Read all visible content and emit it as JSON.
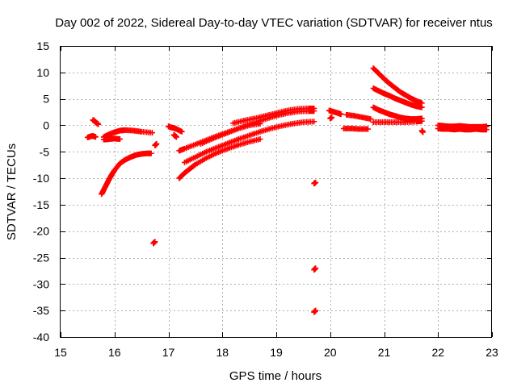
{
  "chart_data": {
    "type": "scatter",
    "title": "Day 002 of 2022, Sidereal Day-to-day VTEC variation (SDTVAR) for receiver ntus",
    "xlabel": "GPS time / hours",
    "ylabel": "SDTVAR / TECUs",
    "xlim": [
      15,
      23
    ],
    "ylim": [
      -40,
      15
    ],
    "xticks": [
      15,
      16,
      17,
      18,
      19,
      20,
      21,
      22,
      23
    ],
    "yticks": [
      15,
      10,
      5,
      0,
      -5,
      -10,
      -15,
      -20,
      -25,
      -30,
      -35,
      -40
    ],
    "grid": true,
    "marker": "plus",
    "color": "#ff0000",
    "series": [
      {
        "name": "seg1",
        "x": [
          15.6,
          15.62,
          15.65,
          15.7
        ],
        "y": [
          1.0,
          0.9,
          0.6,
          0.2
        ]
      },
      {
        "name": "seg2",
        "x": [
          15.5,
          15.55,
          15.6,
          15.65
        ],
        "y": [
          -2.3,
          -2.1,
          -2.0,
          -2.2
        ]
      },
      {
        "name": "seg3",
        "x": [
          15.8,
          15.9,
          16.0,
          16.1
        ],
        "y": [
          -2.7,
          -2.6,
          -2.5,
          -2.6
        ]
      },
      {
        "name": "seg4",
        "x": [
          15.8,
          15.9,
          16.0,
          16.1,
          16.2,
          16.35,
          16.5,
          16.7
        ],
        "y": [
          -2.2,
          -1.7,
          -1.3,
          -1.0,
          -0.9,
          -1.0,
          -1.2,
          -1.4
        ]
      },
      {
        "name": "seg5",
        "x": [
          15.76,
          15.8,
          15.85,
          15.9,
          15.95,
          16.0,
          16.1,
          16.2,
          16.3,
          16.4,
          16.5,
          16.6,
          16.68
        ],
        "y": [
          -13.0,
          -12.2,
          -11.2,
          -10.2,
          -9.3,
          -8.5,
          -7.2,
          -6.5,
          -6.0,
          -5.6,
          -5.4,
          -5.3,
          -5.3
        ]
      },
      {
        "name": "seg6",
        "x": [
          16.72,
          16.75
        ],
        "y": [
          -22.3,
          -22.0
        ]
      },
      {
        "name": "seg7",
        "x": [
          16.75,
          16.78
        ],
        "y": [
          -3.8,
          -3.5
        ]
      },
      {
        "name": "seg8",
        "x": [
          17.0,
          17.05,
          17.1,
          17.15,
          17.25
        ],
        "y": [
          -0.2,
          -0.4,
          -0.5,
          -0.7,
          -1.2
        ]
      },
      {
        "name": "seg9",
        "x": [
          17.1,
          17.15
        ],
        "y": [
          -1.8,
          -2.2
        ]
      },
      {
        "name": "seg10",
        "x": [
          17.2,
          17.3,
          17.5,
          17.7,
          17.9,
          18.1,
          18.3,
          18.5,
          18.7
        ],
        "y": [
          -4.8,
          -4.4,
          -3.6,
          -2.8,
          -2.0,
          -1.3,
          -0.6,
          0.0,
          0.3
        ]
      },
      {
        "name": "seg11",
        "x": [
          17.2,
          17.3,
          17.4,
          17.5,
          17.7,
          17.9,
          18.1,
          18.3,
          18.5,
          18.7
        ],
        "y": [
          -10.0,
          -9.0,
          -8.2,
          -7.4,
          -6.2,
          -5.2,
          -4.4,
          -3.7,
          -3.1,
          -2.6
        ]
      },
      {
        "name": "seg12",
        "x": [
          17.3,
          17.5,
          17.7,
          17.9,
          18.1,
          18.3,
          18.5,
          18.7,
          18.9,
          19.1,
          19.3,
          19.5,
          19.7
        ],
        "y": [
          -7.0,
          -6.0,
          -5.0,
          -4.2,
          -3.4,
          -2.6,
          -1.9,
          -1.2,
          -0.6,
          -0.1,
          0.3,
          0.6,
          0.7
        ]
      },
      {
        "name": "seg13",
        "x": [
          17.6,
          17.8,
          18.0,
          18.2,
          18.4,
          18.6,
          18.8,
          19.0,
          19.2,
          19.4,
          19.6,
          19.7
        ],
        "y": [
          -3.5,
          -2.6,
          -1.8,
          -1.0,
          -0.2,
          0.5,
          1.2,
          1.8,
          2.3,
          2.6,
          2.7,
          2.7
        ]
      },
      {
        "name": "seg14",
        "x": [
          18.2,
          18.4,
          18.6,
          18.8,
          19.0,
          19.2,
          19.4,
          19.6,
          19.7
        ],
        "y": [
          0.4,
          0.9,
          1.3,
          1.8,
          2.3,
          2.8,
          3.1,
          3.2,
          3.2
        ]
      },
      {
        "name": "seg15",
        "x": [
          19.7,
          19.73
        ],
        "y": [
          -11.0,
          -10.8
        ]
      },
      {
        "name": "seg16",
        "x": [
          19.7,
          19.73
        ],
        "y": [
          -27.3,
          -27.0
        ]
      },
      {
        "name": "seg17",
        "x": [
          19.7,
          19.73
        ],
        "y": [
          -35.3,
          -35.0
        ]
      },
      {
        "name": "seg18",
        "x": [
          19.98,
          20.05,
          20.15,
          20.2
        ],
        "y": [
          2.8,
          2.6,
          2.3,
          2.1
        ]
      },
      {
        "name": "seg19",
        "x": [
          20.0,
          20.03
        ],
        "y": [
          1.3,
          1.5
        ]
      },
      {
        "name": "seg20",
        "x": [
          20.3,
          20.45,
          20.6,
          20.75
        ],
        "y": [
          2.0,
          1.8,
          1.5,
          1.2
        ]
      },
      {
        "name": "seg21",
        "x": [
          20.25,
          20.4,
          20.55,
          20.7
        ],
        "y": [
          -0.6,
          -0.6,
          -0.7,
          -0.7
        ]
      },
      {
        "name": "seg22",
        "x": [
          20.8,
          20.9,
          21.0,
          21.1,
          21.2,
          21.3,
          21.4,
          21.5,
          21.6,
          21.7
        ],
        "y": [
          10.8,
          9.8,
          8.8,
          7.9,
          7.1,
          6.3,
          5.7,
          5.1,
          4.6,
          4.2
        ]
      },
      {
        "name": "seg23",
        "x": [
          20.8,
          20.9,
          21.0,
          21.1,
          21.2,
          21.3,
          21.4,
          21.5,
          21.6,
          21.7
        ],
        "y": [
          7.0,
          6.5,
          6.0,
          5.6,
          5.1,
          4.7,
          4.3,
          3.9,
          3.6,
          3.4
        ]
      },
      {
        "name": "seg24",
        "x": [
          20.8,
          20.9,
          21.0,
          21.1,
          21.2,
          21.3,
          21.4,
          21.5,
          21.6,
          21.7
        ],
        "y": [
          3.4,
          2.9,
          2.5,
          2.1,
          1.8,
          1.5,
          1.3,
          1.2,
          1.2,
          1.3
        ]
      },
      {
        "name": "seg25",
        "x": [
          20.8,
          21.0,
          21.2,
          21.4,
          21.6,
          21.7
        ],
        "y": [
          0.6,
          0.6,
          0.6,
          0.6,
          0.7,
          0.8
        ]
      },
      {
        "name": "seg26",
        "x": [
          21.7,
          21.72
        ],
        "y": [
          -1.0,
          -1.3
        ]
      },
      {
        "name": "seg27",
        "x": [
          22.0,
          22.1,
          22.2,
          22.3,
          22.4,
          22.5,
          22.6,
          22.7,
          22.8,
          22.9
        ],
        "y": [
          0.0,
          -0.1,
          -0.2,
          -0.2,
          -0.1,
          -0.2,
          -0.3,
          -0.3,
          -0.3,
          -0.2
        ]
      },
      {
        "name": "seg28",
        "x": [
          22.0,
          22.1,
          22.2,
          22.3,
          22.4,
          22.5,
          22.6,
          22.7,
          22.8,
          22.9
        ],
        "y": [
          -0.6,
          -0.7,
          -0.7,
          -0.8,
          -0.7,
          -0.8,
          -0.8,
          -0.7,
          -0.8,
          -0.8
        ]
      }
    ]
  }
}
